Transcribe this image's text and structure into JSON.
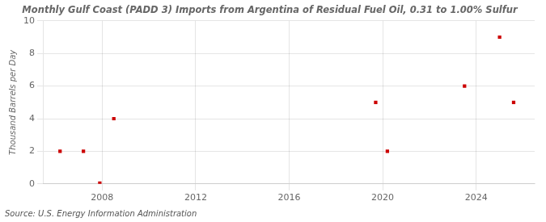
{
  "chart_data": {
    "type": "scatter",
    "title": "Monthly Gulf Coast (PADD 3) Imports from Argentina of Residual Fuel Oil, 0.31 to 1.00% Sulfur",
    "y_label": "Thousand Barrels per Day",
    "annotations": [
      "Source: U.S. Energy Information Administration"
    ],
    "x": [
      2006.2,
      2007.2,
      2007.9,
      2008.5,
      2019.7,
      2020.2,
      2023.5,
      2025.0,
      2025.6
    ],
    "values": [
      2,
      2,
      0.05,
      4,
      5,
      2,
      6,
      9,
      5
    ],
    "color": "#cc0000",
    "marker": "square",
    "xlim": [
      2005.5,
      2026.5
    ],
    "ylim": [
      0,
      10
    ],
    "xticks": [
      2008,
      2012,
      2016,
      2020,
      2024
    ],
    "yticks": [
      0,
      2,
      4,
      6,
      8,
      10
    ],
    "grid": true
  }
}
